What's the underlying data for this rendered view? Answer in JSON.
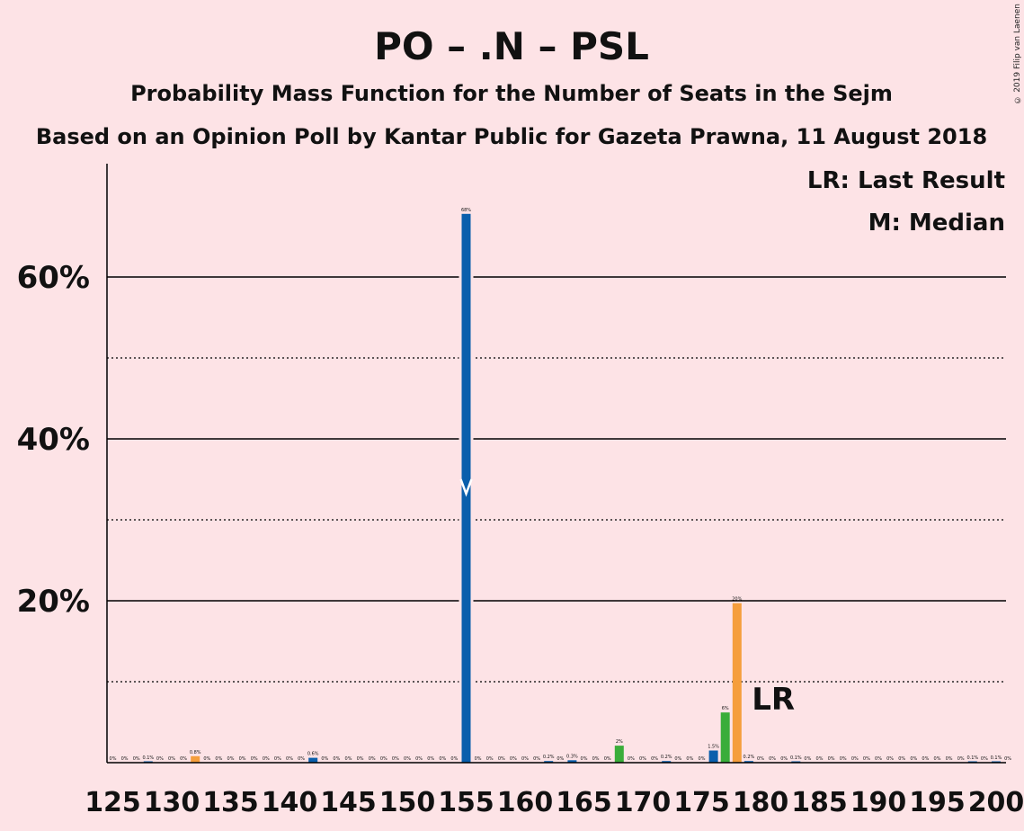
{
  "copyright": "© 2019 Filip van Laenen",
  "chart_data": {
    "type": "bar",
    "title": "PO – .N – PSL",
    "subtitle": "Probability Mass Function for the Number of Seats in the Sejm",
    "subtitle2": "Based on an Opinion Poll by Kantar Public for Gazeta Prawna, 11 August 2018",
    "legend": {
      "last_result": "LR: Last Result",
      "median": "M: Median",
      "placement": "top-right"
    },
    "lr_marker": "LR",
    "median_marker": "M",
    "last_result_seat": 182,
    "median_seat": 155,
    "xlim": [
      125,
      200
    ],
    "ylim": [
      0,
      0.74
    ],
    "x_ticks": [
      125,
      130,
      135,
      140,
      145,
      150,
      155,
      160,
      165,
      170,
      175,
      180,
      185,
      190,
      195,
      200
    ],
    "y_ticks_major": [
      {
        "value": 0.2,
        "label": "20%"
      },
      {
        "value": 0.4,
        "label": "40%"
      },
      {
        "value": 0.6,
        "label": "60%"
      }
    ],
    "y_ticks_minor": [
      0.1,
      0.3,
      0.5
    ],
    "colors": {
      "background": "#fde3e6",
      "blue": "#0a5fac",
      "green": "#3aad3a",
      "orange": "#f59e3c",
      "grid": "#000000"
    },
    "bars": [
      {
        "seat": 125,
        "value": 0,
        "label": "0%",
        "color": "blue"
      },
      {
        "seat": 126,
        "value": 0,
        "label": "0%",
        "color": "blue"
      },
      {
        "seat": 127,
        "value": 0,
        "label": "0%",
        "color": "blue"
      },
      {
        "seat": 128,
        "value": 0.001,
        "label": "0.1%",
        "color": "blue"
      },
      {
        "seat": 129,
        "value": 0,
        "label": "0%",
        "color": "blue"
      },
      {
        "seat": 130,
        "value": 0,
        "label": "0%",
        "color": "blue"
      },
      {
        "seat": 131,
        "value": 0,
        "label": "0%",
        "color": "blue"
      },
      {
        "seat": 132,
        "value": 0.008,
        "label": "0.8%",
        "color": "orange"
      },
      {
        "seat": 133,
        "value": 0,
        "label": "0%",
        "color": "blue"
      },
      {
        "seat": 134,
        "value": 0,
        "label": "0%",
        "color": "blue"
      },
      {
        "seat": 135,
        "value": 0,
        "label": "0%",
        "color": "blue"
      },
      {
        "seat": 136,
        "value": 0,
        "label": "0%",
        "color": "blue"
      },
      {
        "seat": 137,
        "value": 0,
        "label": "0%",
        "color": "blue"
      },
      {
        "seat": 138,
        "value": 0,
        "label": "0%",
        "color": "blue"
      },
      {
        "seat": 139,
        "value": 0,
        "label": "0%",
        "color": "blue"
      },
      {
        "seat": 140,
        "value": 0,
        "label": "0%",
        "color": "blue"
      },
      {
        "seat": 141,
        "value": 0,
        "label": "0%",
        "color": "blue"
      },
      {
        "seat": 142,
        "value": 0.006,
        "label": "0.6%",
        "color": "blue"
      },
      {
        "seat": 143,
        "value": 0,
        "label": "0%",
        "color": "blue"
      },
      {
        "seat": 144,
        "value": 0,
        "label": "0%",
        "color": "blue"
      },
      {
        "seat": 145,
        "value": 0,
        "label": "0%",
        "color": "blue"
      },
      {
        "seat": 146,
        "value": 0,
        "label": "0%",
        "color": "blue"
      },
      {
        "seat": 147,
        "value": 0,
        "label": "0%",
        "color": "blue"
      },
      {
        "seat": 148,
        "value": 0,
        "label": "0%",
        "color": "blue"
      },
      {
        "seat": 149,
        "value": 0,
        "label": "0%",
        "color": "blue"
      },
      {
        "seat": 150,
        "value": 0,
        "label": "0%",
        "color": "blue"
      },
      {
        "seat": 151,
        "value": 0,
        "label": "0%",
        "color": "blue"
      },
      {
        "seat": 152,
        "value": 0,
        "label": "0%",
        "color": "blue"
      },
      {
        "seat": 153,
        "value": 0,
        "label": "0%",
        "color": "blue"
      },
      {
        "seat": 154,
        "value": 0,
        "label": "0%",
        "color": "blue"
      },
      {
        "seat": 155,
        "value": 0.678,
        "label": "68%",
        "color": "blue"
      },
      {
        "seat": 156,
        "value": 0,
        "label": "0%",
        "color": "blue"
      },
      {
        "seat": 157,
        "value": 0,
        "label": "0%",
        "color": "blue"
      },
      {
        "seat": 158,
        "value": 0,
        "label": "0%",
        "color": "blue"
      },
      {
        "seat": 159,
        "value": 0,
        "label": "0%",
        "color": "blue"
      },
      {
        "seat": 160,
        "value": 0,
        "label": "0%",
        "color": "blue"
      },
      {
        "seat": 161,
        "value": 0,
        "label": "0%",
        "color": "blue"
      },
      {
        "seat": 162,
        "value": 0.002,
        "label": "0.2%",
        "color": "blue"
      },
      {
        "seat": 163,
        "value": 0,
        "label": "0%",
        "color": "blue"
      },
      {
        "seat": 164,
        "value": 0.003,
        "label": "0.3%",
        "color": "blue"
      },
      {
        "seat": 165,
        "value": 0,
        "label": "0%",
        "color": "blue"
      },
      {
        "seat": 166,
        "value": 0,
        "label": "0%",
        "color": "blue"
      },
      {
        "seat": 167,
        "value": 0,
        "label": "0%",
        "color": "blue"
      },
      {
        "seat": 168,
        "value": 0.021,
        "label": "2%",
        "color": "green"
      },
      {
        "seat": 169,
        "value": 0,
        "label": "0%",
        "color": "blue"
      },
      {
        "seat": 170,
        "value": 0,
        "label": "0%",
        "color": "blue"
      },
      {
        "seat": 171,
        "value": 0,
        "label": "0%",
        "color": "blue"
      },
      {
        "seat": 172,
        "value": 0.002,
        "label": "0.2%",
        "color": "blue"
      },
      {
        "seat": 173,
        "value": 0,
        "label": "0%",
        "color": "blue"
      },
      {
        "seat": 174,
        "value": 0,
        "label": "0%",
        "color": "blue"
      },
      {
        "seat": 175,
        "value": 0,
        "label": "0%",
        "color": "blue"
      },
      {
        "seat": 176,
        "value": 0.015,
        "label": "1.5%",
        "color": "blue"
      },
      {
        "seat": 177,
        "value": 0.062,
        "label": "6%",
        "color": "green"
      },
      {
        "seat": 178,
        "value": 0.197,
        "label": "20%",
        "color": "orange"
      },
      {
        "seat": 179,
        "value": 0.002,
        "label": "0.2%",
        "color": "blue"
      },
      {
        "seat": 180,
        "value": 0,
        "label": "0%",
        "color": "blue"
      },
      {
        "seat": 181,
        "value": 0,
        "label": "0%",
        "color": "blue"
      },
      {
        "seat": 182,
        "value": 0,
        "label": "0%",
        "color": "blue"
      },
      {
        "seat": 183,
        "value": 0.001,
        "label": "0.1%",
        "color": "blue"
      },
      {
        "seat": 184,
        "value": 0,
        "label": "0%",
        "color": "blue"
      },
      {
        "seat": 185,
        "value": 0,
        "label": "0%",
        "color": "blue"
      },
      {
        "seat": 186,
        "value": 0,
        "label": "0%",
        "color": "blue"
      },
      {
        "seat": 187,
        "value": 0,
        "label": "0%",
        "color": "blue"
      },
      {
        "seat": 188,
        "value": 0,
        "label": "0%",
        "color": "blue"
      },
      {
        "seat": 189,
        "value": 0,
        "label": "0%",
        "color": "blue"
      },
      {
        "seat": 190,
        "value": 0,
        "label": "0%",
        "color": "blue"
      },
      {
        "seat": 191,
        "value": 0,
        "label": "0%",
        "color": "blue"
      },
      {
        "seat": 192,
        "value": 0,
        "label": "0%",
        "color": "blue"
      },
      {
        "seat": 193,
        "value": 0,
        "label": "0%",
        "color": "blue"
      },
      {
        "seat": 194,
        "value": 0,
        "label": "0%",
        "color": "blue"
      },
      {
        "seat": 195,
        "value": 0,
        "label": "0%",
        "color": "blue"
      },
      {
        "seat": 196,
        "value": 0,
        "label": "0%",
        "color": "blue"
      },
      {
        "seat": 197,
        "value": 0,
        "label": "0%",
        "color": "blue"
      },
      {
        "seat": 198,
        "value": 0.001,
        "label": "0.1%",
        "color": "blue"
      },
      {
        "seat": 199,
        "value": 0,
        "label": "0%",
        "color": "blue"
      },
      {
        "seat": 200,
        "value": 0.001,
        "label": "0.1%",
        "color": "blue"
      },
      {
        "seat": 201,
        "value": 0,
        "label": "0%",
        "color": "blue"
      }
    ]
  }
}
